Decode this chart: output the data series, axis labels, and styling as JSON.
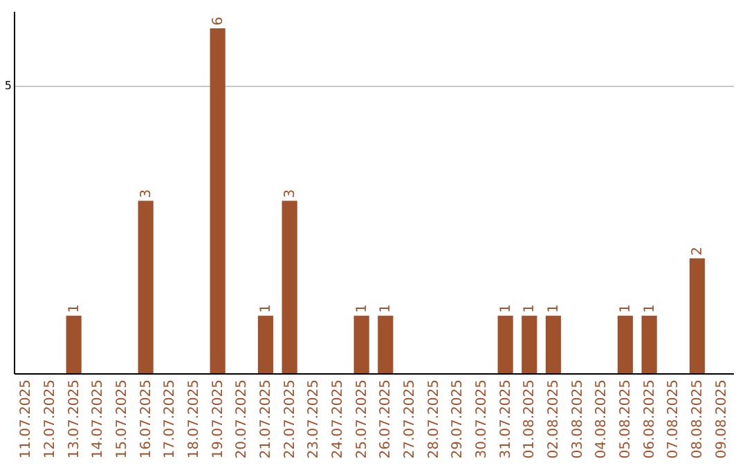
{
  "chart_data": {
    "type": "bar",
    "categories": [
      "11.07.2025",
      "12.07.2025",
      "13.07.2025",
      "14.07.2025",
      "15.07.2025",
      "16.07.2025",
      "17.07.2025",
      "18.07.2025",
      "19.07.2025",
      "20.07.2025",
      "21.07.2025",
      "22.07.2025",
      "23.07.2025",
      "24.07.2025",
      "25.07.2025",
      "26.07.2025",
      "27.07.2025",
      "28.07.2025",
      "29.07.2025",
      "30.07.2025",
      "31.07.2025",
      "01.08.2025",
      "02.08.2025",
      "03.08.2025",
      "04.08.2025",
      "05.08.2025",
      "06.08.2025",
      "07.08.2025",
      "08.08.2025",
      "09.08.2025"
    ],
    "values": [
      null,
      null,
      1,
      null,
      null,
      3,
      null,
      null,
      6,
      null,
      1,
      3,
      null,
      null,
      1,
      1,
      null,
      null,
      null,
      null,
      1,
      1,
      1,
      null,
      null,
      1,
      1,
      null,
      2,
      null
    ],
    "color": "#a0522d",
    "ylim": [
      0,
      6.3
    ],
    "yticks": [
      5
    ],
    "grid": "y",
    "data_labels": true
  }
}
